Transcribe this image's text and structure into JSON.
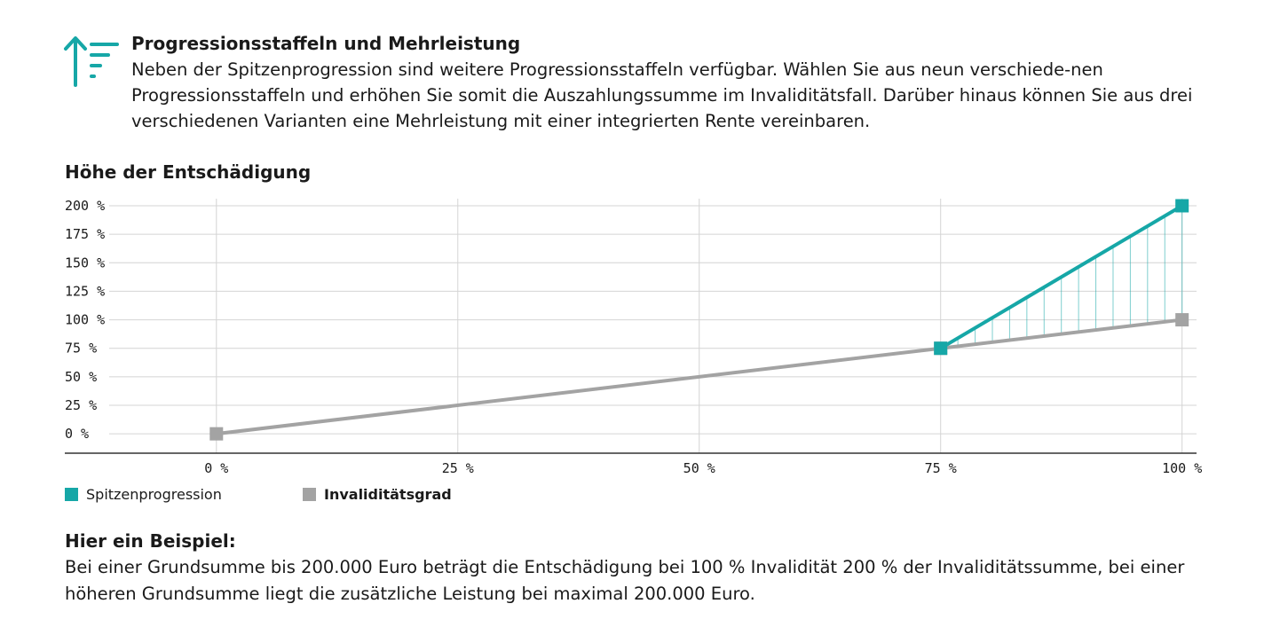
{
  "header": {
    "icon": "progression-icon",
    "title": "Progressionsstaffeln und Mehrleistung",
    "text": "Neben der Spitzenprogression sind weitere Progressionsstaffeln verfügbar. Wählen Sie aus neun verschiede-nen Progressionsstaffeln und erhöhen Sie somit die Auszahlungssumme im Invaliditätsfall. Darüber hinaus können Sie aus drei verschiedenen Varianten eine Mehrleistung mit einer integrierten Rente vereinbaren."
  },
  "colors": {
    "teal": "#16a7a7",
    "gray": "#a3a3a3",
    "grid": "#d4d4d4",
    "axis": "#333333"
  },
  "chart_data": {
    "type": "line",
    "title": "Höhe der Entschädigung",
    "xlabel": "",
    "ylabel": "",
    "x_ticks": [
      "0 %",
      "25 %",
      "50 %",
      "75 %",
      "100 %"
    ],
    "x_tick_values": [
      0,
      25,
      50,
      75,
      100
    ],
    "y_ticks": [
      "0 %",
      "25 %",
      "50 %",
      "75 %",
      "100 %",
      "125 %",
      "150 %",
      "175 %",
      "200 %"
    ],
    "y_tick_values": [
      0,
      25,
      50,
      75,
      100,
      125,
      150,
      175,
      200
    ],
    "xlim": [
      -15.7,
      101.5
    ],
    "ylim": [
      -17,
      200
    ],
    "grid": true,
    "legend_position": "bottom-left",
    "series": [
      {
        "name": "Spitzenprogression",
        "color": "#16a7a7",
        "x": [
          75,
          100
        ],
        "y": [
          75,
          200
        ],
        "marker": "square",
        "hatched_area": true
      },
      {
        "name": "Invaliditätsgrad",
        "color": "#a3a3a3",
        "x": [
          0,
          75,
          100
        ],
        "y": [
          0,
          75,
          100
        ],
        "marker": "square"
      }
    ]
  },
  "example": {
    "title": "Hier ein Beispiel:",
    "text": "Bei einer Grundsumme bis 200.000 Euro beträgt die Entschädigung bei 100 % Invalidität 200 % der Invaliditätssumme, bei einer höheren Grundsumme liegt die zusätzliche Leistung bei maximal 200.000 Euro."
  }
}
